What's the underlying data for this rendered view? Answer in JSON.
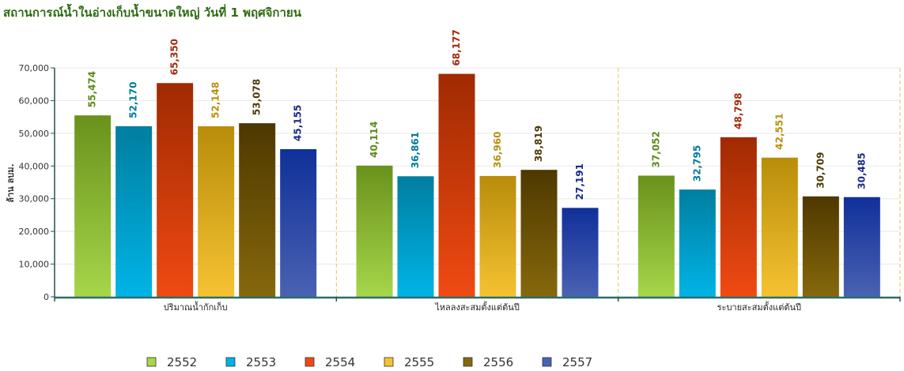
{
  "title": "สถานการณ์น้ำในอ่างเก็บน้ำขนาดใหญ่ วันที่ 1 พฤศจิกายน",
  "chart_data": {
    "type": "bar",
    "title": "สถานการณ์น้ำในอ่างเก็บน้ำขนาดใหญ่ วันที่ 1 พฤศจิกายน",
    "ylabel": "ล้าน ลบม.",
    "xlabel": "",
    "ylim": [
      0,
      70000
    ],
    "yticks": [
      0,
      10000,
      20000,
      30000,
      40000,
      50000,
      60000,
      70000
    ],
    "ytick_labels": [
      "0",
      "10,000",
      "20,000",
      "30,000",
      "40,000",
      "50,000",
      "60,000",
      "70,000"
    ],
    "categories": [
      "ปริมาณน้ำกักเก็บ",
      "ไหลลงสะสมตั้งแต่ต้นปี",
      "ระบายสะสมตั้งแต่ต้นปี"
    ],
    "grid": true,
    "legend_position": "bottom",
    "series": [
      {
        "name": "2552",
        "values": [
          55474,
          40114,
          37052
        ],
        "labels": [
          "55,474",
          "40,114",
          "37,052"
        ],
        "color_top": "#6a921c",
        "color_bottom": "#a6d64a",
        "label_color": "#5e8a1a"
      },
      {
        "name": "2553",
        "values": [
          52170,
          36861,
          32795
        ],
        "labels": [
          "52,170",
          "36,861",
          "32,795"
        ],
        "color_top": "#007ea0",
        "color_bottom": "#00b4e6",
        "label_color": "#007a9e"
      },
      {
        "name": "2554",
        "values": [
          65350,
          68177,
          48798
        ],
        "labels": [
          "65,350",
          "68,177",
          "48,798"
        ],
        "color_top": "#a02a02",
        "color_bottom": "#f04a12",
        "label_color": "#a02c0a"
      },
      {
        "name": "2555",
        "values": [
          52148,
          36960,
          42551
        ],
        "labels": [
          "52,148",
          "36,960",
          "42,551"
        ],
        "color_top": "#b88d0a",
        "color_bottom": "#f6c232",
        "label_color": "#b8900c"
      },
      {
        "name": "2556",
        "values": [
          53078,
          38819,
          30709
        ],
        "labels": [
          "53,078",
          "38,819",
          "30,709"
        ],
        "color_top": "#4e3800",
        "color_bottom": "#86680c",
        "label_color": "#4e3a08"
      },
      {
        "name": "2557",
        "values": [
          45155,
          27191,
          30485
        ],
        "labels": [
          "45,155",
          "27,191",
          "30,485"
        ],
        "color_top": "#10309a",
        "color_bottom": "#4a62b2",
        "label_color": "#1a2a8a"
      }
    ]
  }
}
